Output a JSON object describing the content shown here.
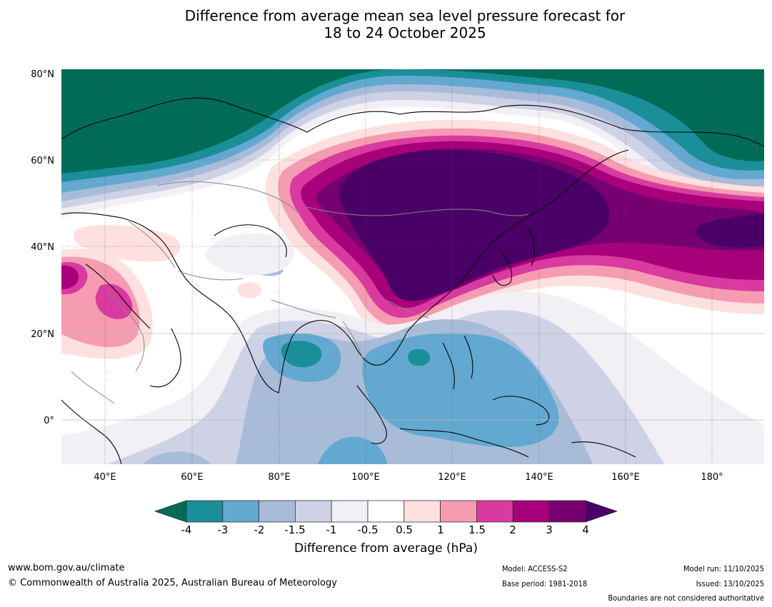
{
  "title": {
    "line1": "Difference from average mean sea level pressure forecast for",
    "line2": "18 to 24 October 2025"
  },
  "map": {
    "lat_labels": [
      "80°N",
      "60°N",
      "40°N",
      "20°N",
      "0°"
    ],
    "lon_labels": [
      "40°E",
      "60°E",
      "80°E",
      "100°E",
      "120°E",
      "140°E",
      "160°E",
      "180°"
    ]
  },
  "colorbar": {
    "ticks": [
      "-4",
      "-3",
      "-2",
      "-1.5",
      "-1",
      "-0.5",
      "0.5",
      "1",
      "1.5",
      "2",
      "3",
      "4"
    ],
    "colors": [
      "#006b57",
      "#1b8f99",
      "#63a8d0",
      "#a8bcd9",
      "#cfd1e6",
      "#f2eff5",
      "#ffffff",
      "#fde0df",
      "#f59cb2",
      "#d93aa0",
      "#a8007a",
      "#760070",
      "#4a0066"
    ],
    "label": "Difference from average (hPa)"
  },
  "footer": {
    "website": "www.bom.gov.au/climate",
    "copyright": "© Commonwealth of Australia 2025, Australian Bureau of Meteorology",
    "model": "Model: ACCESS-S2",
    "base_period": "Base period: 1981-2018",
    "model_run": "Model run: 11/10/2025",
    "issued": "Issued: 13/10/2025",
    "disclaimer": "Boundaries are not considered authoritative"
  }
}
